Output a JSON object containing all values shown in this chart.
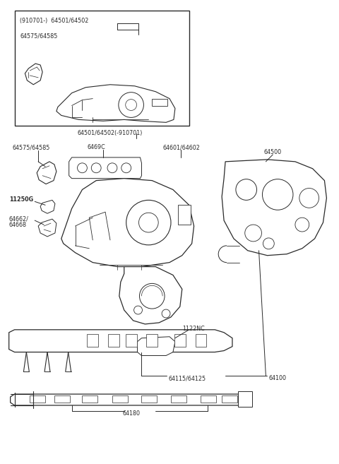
{
  "bg_color": "#ffffff",
  "lc": "#2a2a2a",
  "tc": "#2a2a2a",
  "figsize": [
    4.8,
    6.57
  ],
  "dpi": 100,
  "fs": 5.8,
  "fs_bold": 5.8,
  "labels": {
    "box_title1": "(910701-)  64501/64502",
    "box_sub": "64575/64585",
    "center_label": "64501/64502(-910701)",
    "label_64575": "64575/64585",
    "label_6469C": "6469C",
    "label_64601": "64601/64602",
    "label_64500": "64500",
    "label_11250G": "11250G",
    "label_64662a": "64662/",
    "label_64662b": "64668",
    "label_1122NC": "1122NC",
    "label_64115": "64115/64125",
    "label_64100": "64100",
    "label_64180": "64180"
  }
}
